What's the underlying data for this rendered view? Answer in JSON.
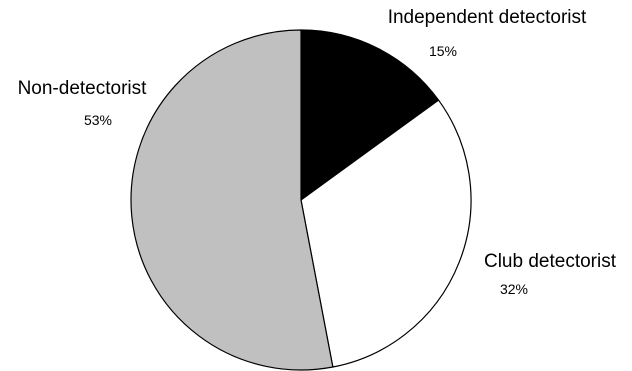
{
  "chart_data": {
    "type": "pie",
    "title": "",
    "slices": [
      {
        "label": "Independent detectorist",
        "value": 15,
        "value_label": "15%",
        "color": "#000000"
      },
      {
        "label": "Club detectorist",
        "value": 32,
        "value_label": "32%",
        "color": "#ffffff"
      },
      {
        "label": "Non-detectorist",
        "value": 53,
        "value_label": "53%",
        "color": "#c0c0c0"
      }
    ],
    "start": "top",
    "direction": "clockwise",
    "outline_color": "#000000"
  }
}
